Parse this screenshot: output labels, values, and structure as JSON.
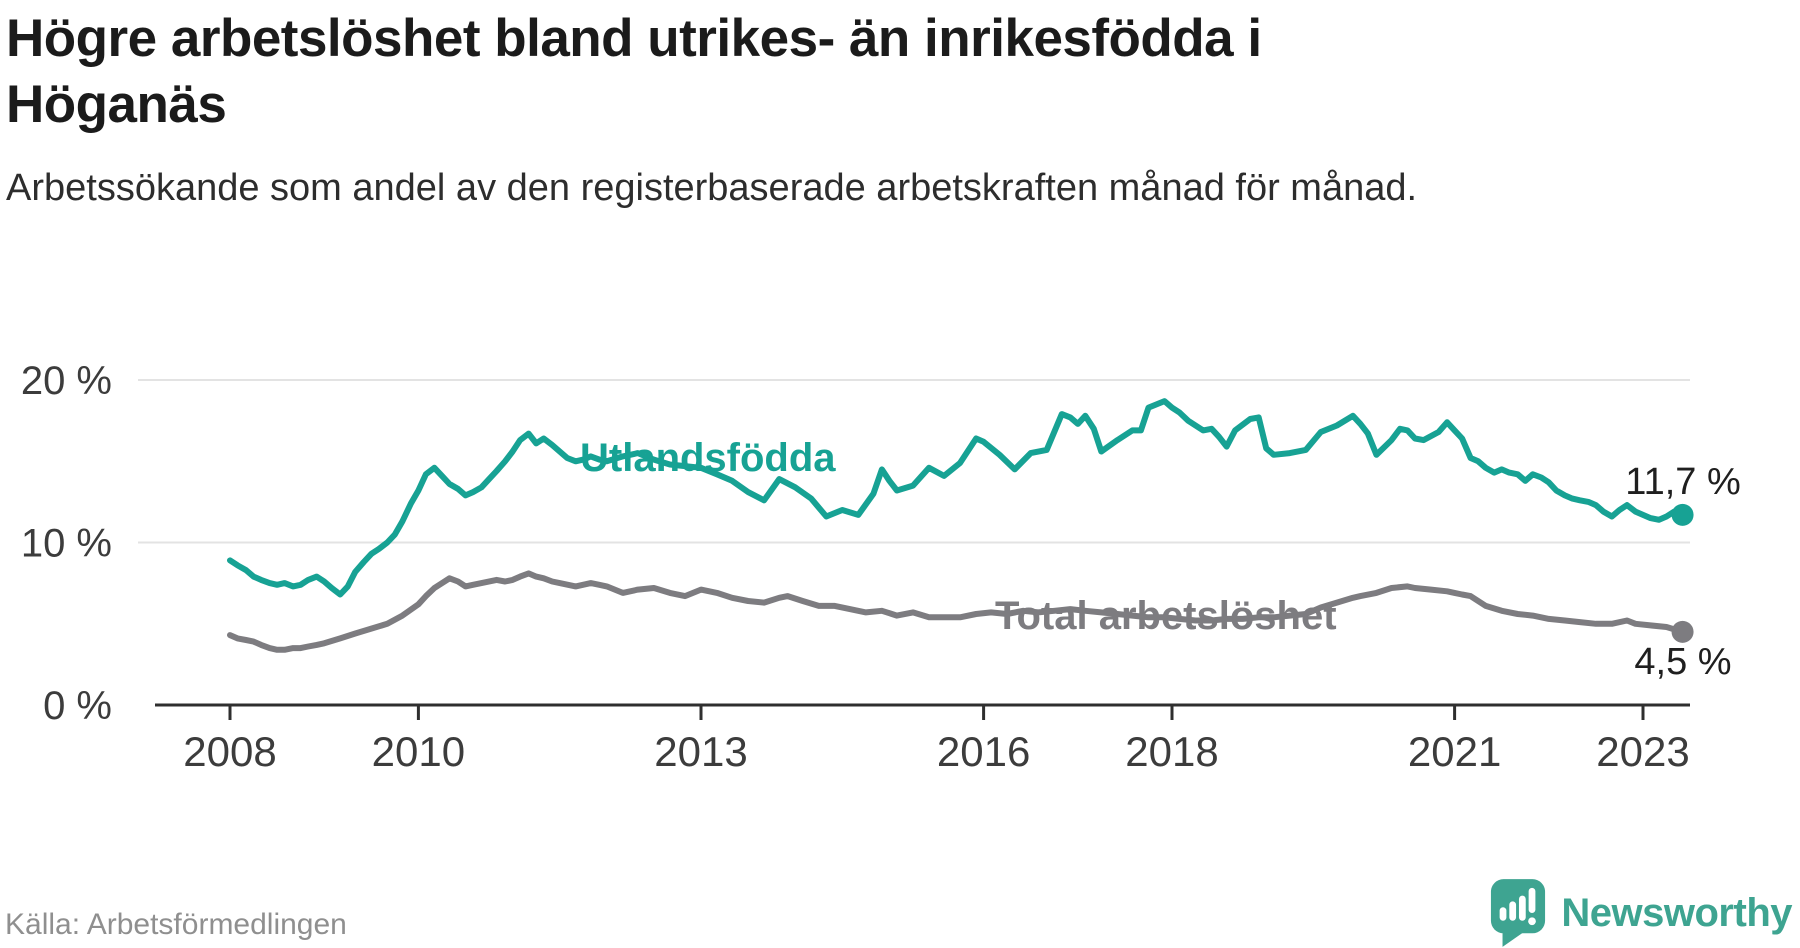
{
  "header": {
    "title": "Högre arbetslöshet bland utrikes- än inrikesfödda i Höganäs",
    "subtitle": "Arbetssökande som andel av den registerbaserade arbetskraften månad för månad."
  },
  "footer": {
    "source": "Källa: Arbetsförmedlingen",
    "brand": "Newsworthy"
  },
  "colors": {
    "foreign_born_line": "#17a294",
    "total_line": "#7d7c80",
    "brand_teal": "#3ea491",
    "axis": "#2f2f2f",
    "grid": "#e3e3e3",
    "value_label": "#1f1f1f"
  },
  "chart_data": {
    "type": "line",
    "title": "Högre arbetslöshet bland utrikes- än inrikesfödda i Höganäs",
    "subtitle": "Arbetssökande som andel av den registerbaserade arbetskraften månad för månad.",
    "unit": "%",
    "grid": "horizontal",
    "x_range": [
      2008.0,
      2023.5
    ],
    "y_range": [
      0,
      20
    ],
    "x_ticks": [
      2008,
      2010,
      2013,
      2016,
      2018,
      2021,
      2023
    ],
    "x_tick_labels": [
      "2008",
      "2010",
      "2013",
      "2016",
      "2018",
      "2021",
      "2023"
    ],
    "y_ticks": [
      {
        "value": 0,
        "label": "0 %"
      },
      {
        "value": 10,
        "label": "10 %"
      },
      {
        "value": 20,
        "label": "20 %"
      }
    ],
    "series": [
      {
        "name": "Utlandsfödda",
        "color": "#17a294",
        "end_label": "11,7 %",
        "end_value": 11.7,
        "points": [
          [
            2008.0,
            8.9
          ],
          [
            2008.08,
            8.6
          ],
          [
            2008.17,
            8.3
          ],
          [
            2008.25,
            7.9
          ],
          [
            2008.33,
            7.7
          ],
          [
            2008.42,
            7.5
          ],
          [
            2008.5,
            7.4
          ],
          [
            2008.58,
            7.5
          ],
          [
            2008.67,
            7.3
          ],
          [
            2008.75,
            7.4
          ],
          [
            2008.83,
            7.7
          ],
          [
            2008.92,
            7.9
          ],
          [
            2009.0,
            7.6
          ],
          [
            2009.08,
            7.2
          ],
          [
            2009.17,
            6.8
          ],
          [
            2009.25,
            7.3
          ],
          [
            2009.33,
            8.2
          ],
          [
            2009.42,
            8.8
          ],
          [
            2009.5,
            9.3
          ],
          [
            2009.58,
            9.6
          ],
          [
            2009.67,
            10.0
          ],
          [
            2009.75,
            10.5
          ],
          [
            2009.83,
            11.3
          ],
          [
            2009.92,
            12.4
          ],
          [
            2010.0,
            13.2
          ],
          [
            2010.08,
            14.2
          ],
          [
            2010.17,
            14.6
          ],
          [
            2010.25,
            14.1
          ],
          [
            2010.33,
            13.6
          ],
          [
            2010.42,
            13.3
          ],
          [
            2010.5,
            12.9
          ],
          [
            2010.58,
            13.1
          ],
          [
            2010.67,
            13.4
          ],
          [
            2010.75,
            13.9
          ],
          [
            2010.83,
            14.4
          ],
          [
            2010.92,
            15.0
          ],
          [
            2011.0,
            15.6
          ],
          [
            2011.08,
            16.3
          ],
          [
            2011.17,
            16.7
          ],
          [
            2011.25,
            16.1
          ],
          [
            2011.33,
            16.4
          ],
          [
            2011.42,
            16.0
          ],
          [
            2011.5,
            15.6
          ],
          [
            2011.58,
            15.2
          ],
          [
            2011.67,
            15.0
          ],
          [
            2011.75,
            15.1
          ],
          [
            2011.83,
            15.3
          ],
          [
            2011.92,
            15.1
          ],
          [
            2012.0,
            15.0
          ],
          [
            2012.17,
            15.3
          ],
          [
            2012.33,
            15.5
          ],
          [
            2012.5,
            15.1
          ],
          [
            2012.67,
            14.8
          ],
          [
            2012.83,
            14.7
          ],
          [
            2013.0,
            14.6
          ],
          [
            2013.17,
            14.2
          ],
          [
            2013.33,
            13.8
          ],
          [
            2013.5,
            13.1
          ],
          [
            2013.67,
            12.6
          ],
          [
            2013.83,
            13.9
          ],
          [
            2014.0,
            13.4
          ],
          [
            2014.17,
            12.7
          ],
          [
            2014.33,
            11.6
          ],
          [
            2014.5,
            12.0
          ],
          [
            2014.67,
            11.7
          ],
          [
            2014.83,
            13.0
          ],
          [
            2014.92,
            14.5
          ],
          [
            2015.0,
            13.8
          ],
          [
            2015.08,
            13.2
          ],
          [
            2015.25,
            13.5
          ],
          [
            2015.42,
            14.6
          ],
          [
            2015.58,
            14.1
          ],
          [
            2015.75,
            14.9
          ],
          [
            2015.92,
            16.4
          ],
          [
            2016.0,
            16.2
          ],
          [
            2016.17,
            15.4
          ],
          [
            2016.33,
            14.5
          ],
          [
            2016.5,
            15.5
          ],
          [
            2016.67,
            15.7
          ],
          [
            2016.83,
            17.9
          ],
          [
            2016.92,
            17.7
          ],
          [
            2017.0,
            17.3
          ],
          [
            2017.08,
            17.8
          ],
          [
            2017.17,
            17.0
          ],
          [
            2017.25,
            15.6
          ],
          [
            2017.42,
            16.3
          ],
          [
            2017.58,
            16.9
          ],
          [
            2017.67,
            16.9
          ],
          [
            2017.75,
            18.3
          ],
          [
            2017.92,
            18.7
          ],
          [
            2018.0,
            18.3
          ],
          [
            2018.08,
            18.0
          ],
          [
            2018.17,
            17.5
          ],
          [
            2018.33,
            16.9
          ],
          [
            2018.42,
            17.0
          ],
          [
            2018.5,
            16.5
          ],
          [
            2018.58,
            15.9
          ],
          [
            2018.67,
            16.9
          ],
          [
            2018.83,
            17.6
          ],
          [
            2018.92,
            17.7
          ],
          [
            2019.0,
            15.8
          ],
          [
            2019.08,
            15.4
          ],
          [
            2019.25,
            15.5
          ],
          [
            2019.42,
            15.7
          ],
          [
            2019.58,
            16.8
          ],
          [
            2019.75,
            17.2
          ],
          [
            2019.92,
            17.8
          ],
          [
            2020.0,
            17.3
          ],
          [
            2020.08,
            16.7
          ],
          [
            2020.17,
            15.4
          ],
          [
            2020.33,
            16.3
          ],
          [
            2020.42,
            17.0
          ],
          [
            2020.5,
            16.9
          ],
          [
            2020.58,
            16.4
          ],
          [
            2020.67,
            16.3
          ],
          [
            2020.83,
            16.8
          ],
          [
            2020.92,
            17.4
          ],
          [
            2021.0,
            16.9
          ],
          [
            2021.08,
            16.4
          ],
          [
            2021.17,
            15.2
          ],
          [
            2021.25,
            15.0
          ],
          [
            2021.33,
            14.6
          ],
          [
            2021.42,
            14.3
          ],
          [
            2021.5,
            14.5
          ],
          [
            2021.58,
            14.3
          ],
          [
            2021.67,
            14.2
          ],
          [
            2021.75,
            13.8
          ],
          [
            2021.83,
            14.2
          ],
          [
            2021.92,
            14.0
          ],
          [
            2022.0,
            13.7
          ],
          [
            2022.08,
            13.2
          ],
          [
            2022.17,
            12.9
          ],
          [
            2022.25,
            12.7
          ],
          [
            2022.33,
            12.6
          ],
          [
            2022.42,
            12.5
          ],
          [
            2022.5,
            12.3
          ],
          [
            2022.58,
            11.9
          ],
          [
            2022.67,
            11.6
          ],
          [
            2022.75,
            12.0
          ],
          [
            2022.83,
            12.3
          ],
          [
            2022.92,
            11.9
          ],
          [
            2023.0,
            11.7
          ],
          [
            2023.08,
            11.5
          ],
          [
            2023.17,
            11.4
          ],
          [
            2023.25,
            11.6
          ],
          [
            2023.33,
            11.9
          ],
          [
            2023.42,
            11.7
          ]
        ]
      },
      {
        "name": "Total arbetslöshet",
        "color": "#7d7c80",
        "end_label": "4,5 %",
        "end_value": 4.5,
        "points": [
          [
            2008.0,
            4.3
          ],
          [
            2008.08,
            4.1
          ],
          [
            2008.17,
            4.0
          ],
          [
            2008.25,
            3.9
          ],
          [
            2008.33,
            3.7
          ],
          [
            2008.42,
            3.5
          ],
          [
            2008.5,
            3.4
          ],
          [
            2008.58,
            3.4
          ],
          [
            2008.67,
            3.5
          ],
          [
            2008.75,
            3.5
          ],
          [
            2008.83,
            3.6
          ],
          [
            2008.92,
            3.7
          ],
          [
            2009.0,
            3.8
          ],
          [
            2009.17,
            4.1
          ],
          [
            2009.33,
            4.4
          ],
          [
            2009.5,
            4.7
          ],
          [
            2009.67,
            5.0
          ],
          [
            2009.83,
            5.5
          ],
          [
            2010.0,
            6.2
          ],
          [
            2010.08,
            6.7
          ],
          [
            2010.17,
            7.2
          ],
          [
            2010.25,
            7.5
          ],
          [
            2010.33,
            7.8
          ],
          [
            2010.42,
            7.6
          ],
          [
            2010.5,
            7.3
          ],
          [
            2010.58,
            7.4
          ],
          [
            2010.67,
            7.5
          ],
          [
            2010.83,
            7.7
          ],
          [
            2010.92,
            7.6
          ],
          [
            2011.0,
            7.7
          ],
          [
            2011.08,
            7.9
          ],
          [
            2011.17,
            8.1
          ],
          [
            2011.25,
            7.9
          ],
          [
            2011.33,
            7.8
          ],
          [
            2011.42,
            7.6
          ],
          [
            2011.5,
            7.5
          ],
          [
            2011.67,
            7.3
          ],
          [
            2011.83,
            7.5
          ],
          [
            2011.92,
            7.4
          ],
          [
            2012.0,
            7.3
          ],
          [
            2012.17,
            6.9
          ],
          [
            2012.33,
            7.1
          ],
          [
            2012.5,
            7.2
          ],
          [
            2012.67,
            6.9
          ],
          [
            2012.83,
            6.7
          ],
          [
            2013.0,
            7.1
          ],
          [
            2013.17,
            6.9
          ],
          [
            2013.33,
            6.6
          ],
          [
            2013.5,
            6.4
          ],
          [
            2013.67,
            6.3
          ],
          [
            2013.83,
            6.6
          ],
          [
            2013.92,
            6.7
          ],
          [
            2014.08,
            6.4
          ],
          [
            2014.25,
            6.1
          ],
          [
            2014.42,
            6.1
          ],
          [
            2014.58,
            5.9
          ],
          [
            2014.75,
            5.7
          ],
          [
            2014.92,
            5.8
          ],
          [
            2015.08,
            5.5
          ],
          [
            2015.25,
            5.7
          ],
          [
            2015.42,
            5.4
          ],
          [
            2015.58,
            5.4
          ],
          [
            2015.75,
            5.4
          ],
          [
            2015.92,
            5.6
          ],
          [
            2016.08,
            5.7
          ],
          [
            2016.25,
            5.6
          ],
          [
            2016.42,
            5.8
          ],
          [
            2016.58,
            5.7
          ],
          [
            2016.75,
            5.8
          ],
          [
            2016.92,
            5.9
          ],
          [
            2017.08,
            5.8
          ],
          [
            2017.25,
            5.7
          ],
          [
            2017.42,
            5.6
          ],
          [
            2017.58,
            5.5
          ],
          [
            2017.75,
            5.4
          ],
          [
            2017.92,
            5.4
          ],
          [
            2018.08,
            5.3
          ],
          [
            2018.25,
            5.2
          ],
          [
            2018.42,
            5.2
          ],
          [
            2018.58,
            5.3
          ],
          [
            2018.75,
            5.3
          ],
          [
            2018.92,
            5.4
          ],
          [
            2019.08,
            5.4
          ],
          [
            2019.25,
            5.5
          ],
          [
            2019.42,
            5.6
          ],
          [
            2019.58,
            6.0
          ],
          [
            2019.75,
            6.3
          ],
          [
            2019.92,
            6.6
          ],
          [
            2020.0,
            6.7
          ],
          [
            2020.17,
            6.9
          ],
          [
            2020.33,
            7.2
          ],
          [
            2020.5,
            7.3
          ],
          [
            2020.58,
            7.2
          ],
          [
            2020.75,
            7.1
          ],
          [
            2020.92,
            7.0
          ],
          [
            2021.0,
            6.9
          ],
          [
            2021.08,
            6.8
          ],
          [
            2021.17,
            6.7
          ],
          [
            2021.33,
            6.1
          ],
          [
            2021.5,
            5.8
          ],
          [
            2021.67,
            5.6
          ],
          [
            2021.83,
            5.5
          ],
          [
            2022.0,
            5.3
          ],
          [
            2022.17,
            5.2
          ],
          [
            2022.33,
            5.1
          ],
          [
            2022.5,
            5.0
          ],
          [
            2022.67,
            5.0
          ],
          [
            2022.83,
            5.2
          ],
          [
            2022.92,
            5.0
          ],
          [
            2023.08,
            4.9
          ],
          [
            2023.25,
            4.8
          ],
          [
            2023.42,
            4.5
          ]
        ]
      }
    ]
  }
}
